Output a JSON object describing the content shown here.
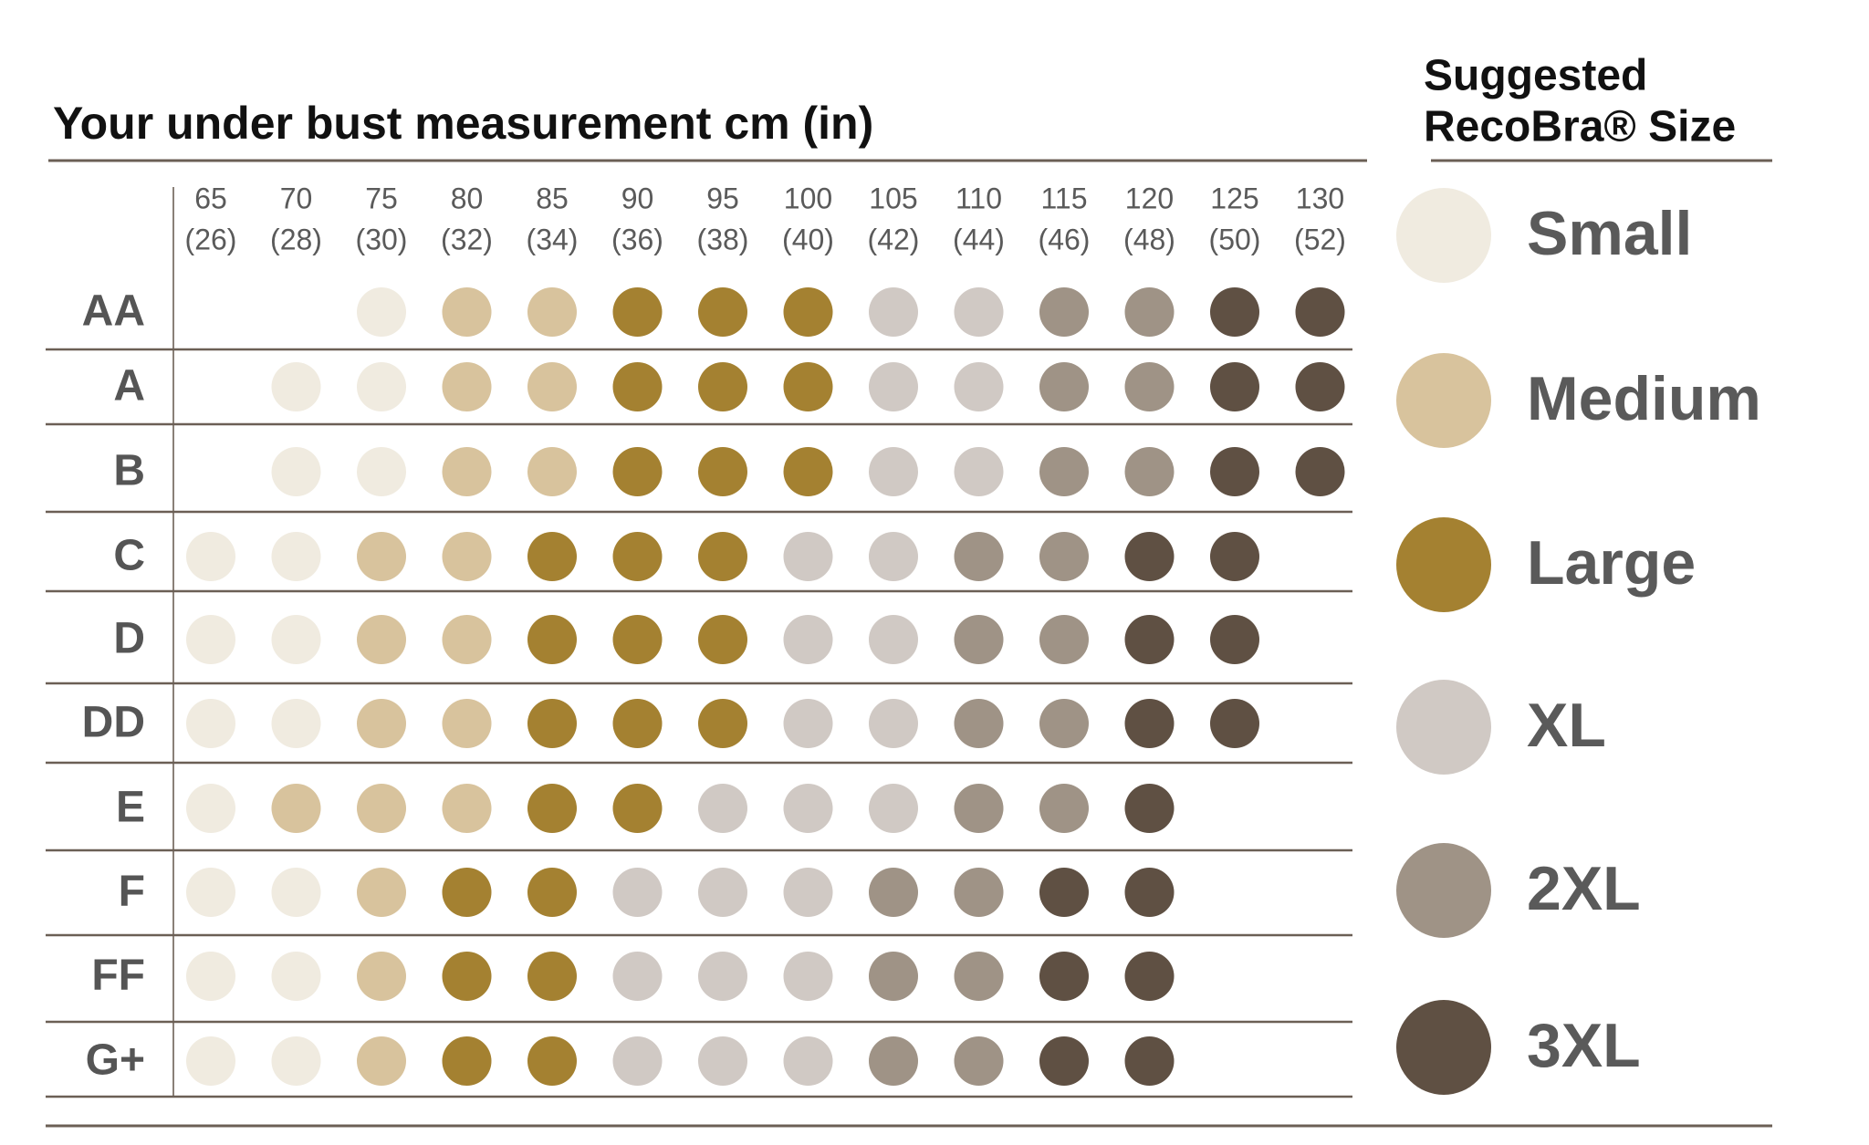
{
  "title": "Your under bust measurement cm (in)",
  "legend": {
    "title": [
      "Suggested",
      "RecoBra® Size"
    ],
    "sizes": [
      {
        "label": "Small",
        "color": "#f0ebe0"
      },
      {
        "label": "Medium",
        "color": "#d8c39d"
      },
      {
        "label": "Large",
        "color": "#a48131"
      },
      {
        "label": "XL",
        "color": "#d0c9c4"
      },
      {
        "label": "2XL",
        "color": "#9f9386"
      },
      {
        "label": "3XL",
        "color": "#5f5043"
      }
    ]
  },
  "table": {
    "columns": [
      {
        "cm": 65,
        "in": "(26)"
      },
      {
        "cm": 70,
        "in": "(28)"
      },
      {
        "cm": 75,
        "in": "(30)"
      },
      {
        "cm": 80,
        "in": "(32)"
      },
      {
        "cm": 85,
        "in": "(34)"
      },
      {
        "cm": 90,
        "in": "(36)"
      },
      {
        "cm": 95,
        "in": "(38)"
      },
      {
        "cm": 100,
        "in": "(40)"
      },
      {
        "cm": 105,
        "in": "(42)"
      },
      {
        "cm": 110,
        "in": "(44)"
      },
      {
        "cm": 115,
        "in": "(46)"
      },
      {
        "cm": 120,
        "in": "(48)"
      },
      {
        "cm": 125,
        "in": "(50)"
      },
      {
        "cm": 130,
        "in": "(52)"
      }
    ],
    "rows": [
      {
        "cup": "AA",
        "cells": [
          null,
          null,
          0,
          1,
          1,
          2,
          2,
          2,
          3,
          3,
          4,
          4,
          5,
          5
        ]
      },
      {
        "cup": "A",
        "cells": [
          null,
          0,
          0,
          1,
          1,
          2,
          2,
          2,
          3,
          3,
          4,
          4,
          5,
          5
        ]
      },
      {
        "cup": "B",
        "cells": [
          null,
          0,
          0,
          1,
          1,
          2,
          2,
          2,
          3,
          3,
          4,
          4,
          5,
          5
        ]
      },
      {
        "cup": "C",
        "cells": [
          0,
          0,
          1,
          1,
          2,
          2,
          2,
          3,
          3,
          4,
          4,
          5,
          5,
          null
        ]
      },
      {
        "cup": "D",
        "cells": [
          0,
          0,
          1,
          1,
          2,
          2,
          2,
          3,
          3,
          4,
          4,
          5,
          5,
          null
        ]
      },
      {
        "cup": "DD",
        "cells": [
          0,
          0,
          1,
          1,
          2,
          2,
          2,
          3,
          3,
          4,
          4,
          5,
          5,
          null
        ]
      },
      {
        "cup": "E",
        "cells": [
          0,
          1,
          1,
          1,
          2,
          2,
          3,
          3,
          3,
          4,
          4,
          5,
          null,
          null
        ]
      },
      {
        "cup": "F",
        "cells": [
          0,
          0,
          1,
          2,
          2,
          3,
          3,
          3,
          4,
          4,
          5,
          5,
          null,
          null
        ]
      },
      {
        "cup": "FF",
        "cells": [
          0,
          0,
          1,
          2,
          2,
          3,
          3,
          3,
          4,
          4,
          5,
          5,
          null,
          null
        ]
      },
      {
        "cup": "G+",
        "cells": [
          0,
          0,
          1,
          2,
          2,
          3,
          3,
          3,
          4,
          4,
          5,
          5,
          null,
          null
        ]
      }
    ]
  }
}
